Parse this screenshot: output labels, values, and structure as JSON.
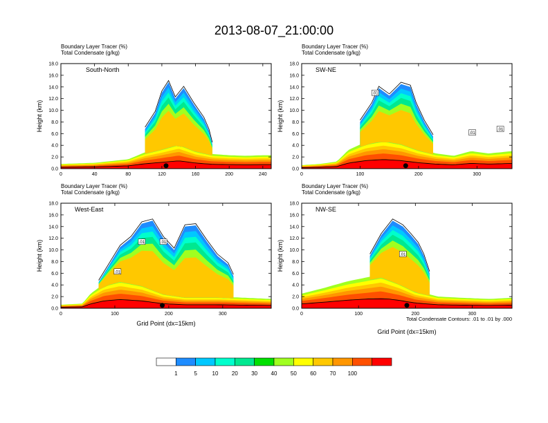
{
  "figure": {
    "title": "2013-08-07_21:00:00",
    "note": "Total Condensate Contours: .01 to .01 by .000"
  },
  "colorbar": {
    "labels": [
      "1",
      "5",
      "10",
      "20",
      "30",
      "40",
      "50",
      "60",
      "70",
      "100"
    ],
    "colors": [
      "#ffffff",
      "#1e8cff",
      "#00c8ff",
      "#00ffcc",
      "#00e890",
      "#00e000",
      "#a0ff20",
      "#ffff00",
      "#ffc800",
      "#ff9600",
      "#ff5000",
      "#ff0000"
    ]
  },
  "chart_data": [
    {
      "type": "heatmap",
      "title": "South-North",
      "subtitle_1": "Boundary Layer Tracer   (%)",
      "subtitle_2": "Total Condensate   (g/kg)",
      "xlabel": "",
      "ylabel": "Height (km)",
      "xlim": [
        0,
        250
      ],
      "ylim": [
        0,
        18
      ],
      "xticks": [
        "0",
        "40",
        "80",
        "120",
        "160",
        "200",
        "240"
      ],
      "yticks": [
        "0.0",
        "2.0",
        "4.0",
        "6.0",
        "8.0",
        "10.0",
        "12.0",
        "14.0",
        "16.0",
        "18.0"
      ],
      "marker_x": 125,
      "boundary_layer_top_km": [
        [
          0,
          0.8
        ],
        [
          40,
          1.0
        ],
        [
          80,
          1.6
        ],
        [
          100,
          2.8
        ],
        [
          120,
          3.6
        ],
        [
          140,
          4.5
        ],
        [
          160,
          3.2
        ],
        [
          180,
          2.5
        ],
        [
          200,
          2.3
        ],
        [
          220,
          2.2
        ],
        [
          240,
          2.3
        ],
        [
          250,
          2.3
        ]
      ],
      "cloud_top_km": [
        [
          100,
          6.8
        ],
        [
          112,
          9.5
        ],
        [
          120,
          13.0
        ],
        [
          128,
          14.8
        ],
        [
          136,
          12.0
        ],
        [
          146,
          13.8
        ],
        [
          158,
          11.0
        ],
        [
          170,
          8.5
        ],
        [
          176,
          6.5
        ],
        [
          180,
          4.2
        ]
      ],
      "cloud_labels": []
    },
    {
      "type": "heatmap",
      "title": "SW-NE",
      "subtitle_1": "Boundary Layer Tracer   (%)",
      "subtitle_2": "Total Condensate   (g/kg)",
      "xlabel": "",
      "ylabel": "Height (km)",
      "xlim": [
        0,
        360
      ],
      "ylim": [
        0,
        18
      ],
      "xticks": [
        "0",
        "100",
        "200",
        "300"
      ],
      "yticks": [
        "0.0",
        "2.0",
        "4.0",
        "6.0",
        "8.0",
        "10.0",
        "12.0",
        "14.0",
        "16.0",
        "18.0"
      ],
      "marker_x": 178,
      "boundary_layer_top_km": [
        [
          0,
          0.6
        ],
        [
          30,
          0.8
        ],
        [
          60,
          1.2
        ],
        [
          80,
          3.2
        ],
        [
          110,
          4.6
        ],
        [
          140,
          5.2
        ],
        [
          170,
          4.6
        ],
        [
          200,
          3.4
        ],
        [
          230,
          2.6
        ],
        [
          260,
          2.2
        ],
        [
          290,
          3.0
        ],
        [
          320,
          2.6
        ],
        [
          360,
          3.0
        ]
      ],
      "cloud_top_km": [
        [
          100,
          8.0
        ],
        [
          120,
          11.0
        ],
        [
          132,
          13.8
        ],
        [
          150,
          12.5
        ],
        [
          170,
          14.5
        ],
        [
          186,
          14.0
        ],
        [
          196,
          11.0
        ],
        [
          210,
          8.0
        ],
        [
          225,
          5.5
        ]
      ],
      "cloud_labels": [
        {
          "text": ".01",
          "x": 126,
          "y": 13.0
        },
        {
          "text": ".01",
          "x": 292,
          "y": 6.2
        },
        {
          "text": ".01",
          "x": 340,
          "y": 6.8
        }
      ]
    },
    {
      "type": "heatmap",
      "title": "West-East",
      "subtitle_1": "Boundary Layer Tracer   (%)",
      "subtitle_2": "Total Condensate   (g/kg)",
      "xlabel": "Grid Point (dx=15km)",
      "ylabel": "Height (km)",
      "xlim": [
        0,
        390
      ],
      "ylim": [
        0,
        18
      ],
      "xticks": [
        "0",
        "100",
        "200",
        "300"
      ],
      "yticks": [
        "0.0",
        "2.0",
        "4.0",
        "6.0",
        "8.0",
        "10.0",
        "12.0",
        "14.0",
        "16.0",
        "18.0"
      ],
      "marker_x": 188,
      "boundary_layer_top_km": [
        [
          0,
          0.6
        ],
        [
          40,
          0.8
        ],
        [
          55,
          2.5
        ],
        [
          80,
          4.2
        ],
        [
          110,
          5.0
        ],
        [
          150,
          4.2
        ],
        [
          190,
          2.6
        ],
        [
          230,
          2.0
        ],
        [
          290,
          2.0
        ],
        [
          340,
          1.8
        ],
        [
          390,
          1.6
        ]
      ],
      "cloud_top_km": [
        [
          70,
          4.5
        ],
        [
          90,
          7.5
        ],
        [
          110,
          10.5
        ],
        [
          130,
          12.0
        ],
        [
          150,
          14.5
        ],
        [
          170,
          15.0
        ],
        [
          190,
          12.0
        ],
        [
          210,
          10.0
        ],
        [
          230,
          14.0
        ],
        [
          250,
          14.2
        ],
        [
          270,
          11.5
        ],
        [
          290,
          9.0
        ],
        [
          310,
          7.5
        ],
        [
          320,
          5.5
        ]
      ],
      "cloud_labels": [
        {
          "text": ".01",
          "x": 105,
          "y": 6.3
        },
        {
          "text": ".01",
          "x": 150,
          "y": 11.4
        },
        {
          "text": ".01",
          "x": 190,
          "y": 11.4
        }
      ]
    },
    {
      "type": "heatmap",
      "title": "NW-SE",
      "subtitle_1": "Boundary Layer Tracer   (%)",
      "subtitle_2": "Total Condensate   (g/kg)",
      "xlabel": "Grid Point (dx=15km)",
      "ylabel": "Height (km)",
      "xlim": [
        0,
        370
      ],
      "ylim": [
        0,
        18
      ],
      "xticks": [
        "0",
        "100",
        "200",
        "300"
      ],
      "yticks": [
        "0.0",
        "2.0",
        "4.0",
        "6.0",
        "8.0",
        "10.0",
        "12.0",
        "14.0",
        "16.0",
        "18.0"
      ],
      "marker_x": 185,
      "boundary_layer_top_km": [
        [
          0,
          2.5
        ],
        [
          40,
          3.5
        ],
        [
          80,
          4.6
        ],
        [
          110,
          5.2
        ],
        [
          140,
          5.8
        ],
        [
          170,
          4.6
        ],
        [
          200,
          3.0
        ],
        [
          240,
          2.0
        ],
        [
          280,
          1.8
        ],
        [
          330,
          1.6
        ],
        [
          370,
          1.8
        ]
      ],
      "cloud_top_km": [
        [
          120,
          9.0
        ],
        [
          140,
          12.5
        ],
        [
          160,
          15.0
        ],
        [
          178,
          14.0
        ],
        [
          192,
          12.5
        ],
        [
          205,
          11.0
        ],
        [
          215,
          9.0
        ],
        [
          225,
          6.0
        ]
      ],
      "cloud_labels": [
        {
          "text": ".01",
          "x": 178,
          "y": 9.3
        }
      ]
    }
  ]
}
